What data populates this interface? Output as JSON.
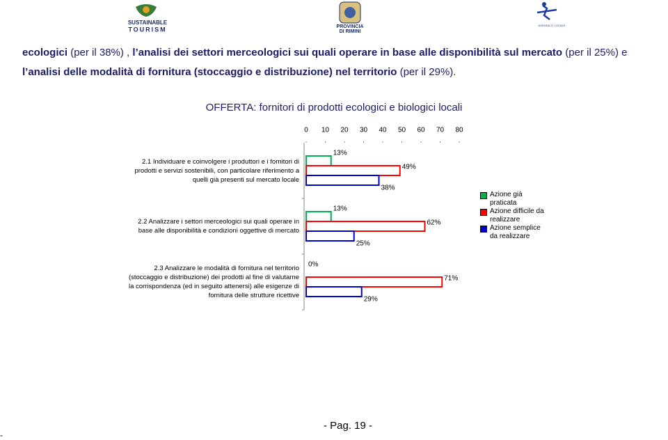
{
  "header": {
    "logos": [
      "SUSTAINABLE",
      "TOURISM",
      "PROVINCIA",
      "DI RIMINI",
      "AGENDA 21 LOCALE"
    ]
  },
  "paragraph": [
    {
      "text": "ecologici",
      "bold": true
    },
    {
      "text": " (per il 38%) , ",
      "bold": false
    },
    {
      "text": "l’analisi dei settori merceologici sui quali operare in base alle disponibilità sul mercato",
      "bold": true
    },
    {
      "text": " (per il 25%) e ",
      "bold": false
    },
    {
      "text": "l’analisi delle modalità di fornitura (stoccaggio e distribuzione) nel territorio",
      "bold": true
    },
    {
      "text": " (per il 29%).",
      "bold": false
    }
  ],
  "chart_data": {
    "type": "bar",
    "orientation": "horizontal",
    "title": "OFFERTA: fornitori di prodotti ecologici e biologici locali",
    "categories": [
      "2.1 Individuare e coinvolgere i produttori e i fornitori di\nprodotti e servizi sostenibili, con particolare riferimento a\nquelli già presenti sul mercato locale",
      "2.2 Analizzare i settori merceologici sui quali operare in\nbase alle disponibilità e condizioni oggettive di mercato",
      "2.3 Analizzare le modalità di fornitura nel territorio\n(stoccaggio e distribuzione) dei prodotti al fine di valutarne\nla corrispondenza (ed in seguito attenersi) alle esigenze di\nfornitura delle strutture ricettive"
    ],
    "series": [
      {
        "name": "Azione già praticata",
        "color": "#00b050",
        "values": [
          13,
          13,
          0
        ],
        "value_labels": [
          "13%",
          "13%",
          "0%"
        ]
      },
      {
        "name": "Azione difficile da realizzare",
        "color": "#ff0000",
        "values": [
          49,
          62,
          71
        ],
        "value_labels": [
          "49%",
          "62%",
          "71%"
        ]
      },
      {
        "name": "Azione semplice da realizzare",
        "color": "#0000cc",
        "values": [
          38,
          25,
          29
        ],
        "value_labels": [
          "38%",
          "25%",
          "29%"
        ]
      }
    ],
    "xlim": [
      0,
      80
    ],
    "xticks": [
      0,
      10,
      20,
      30,
      40,
      50,
      60,
      70,
      80
    ],
    "legend": "right"
  },
  "footer": {
    "page": "- Pag. 19 -",
    "mark": "-"
  }
}
